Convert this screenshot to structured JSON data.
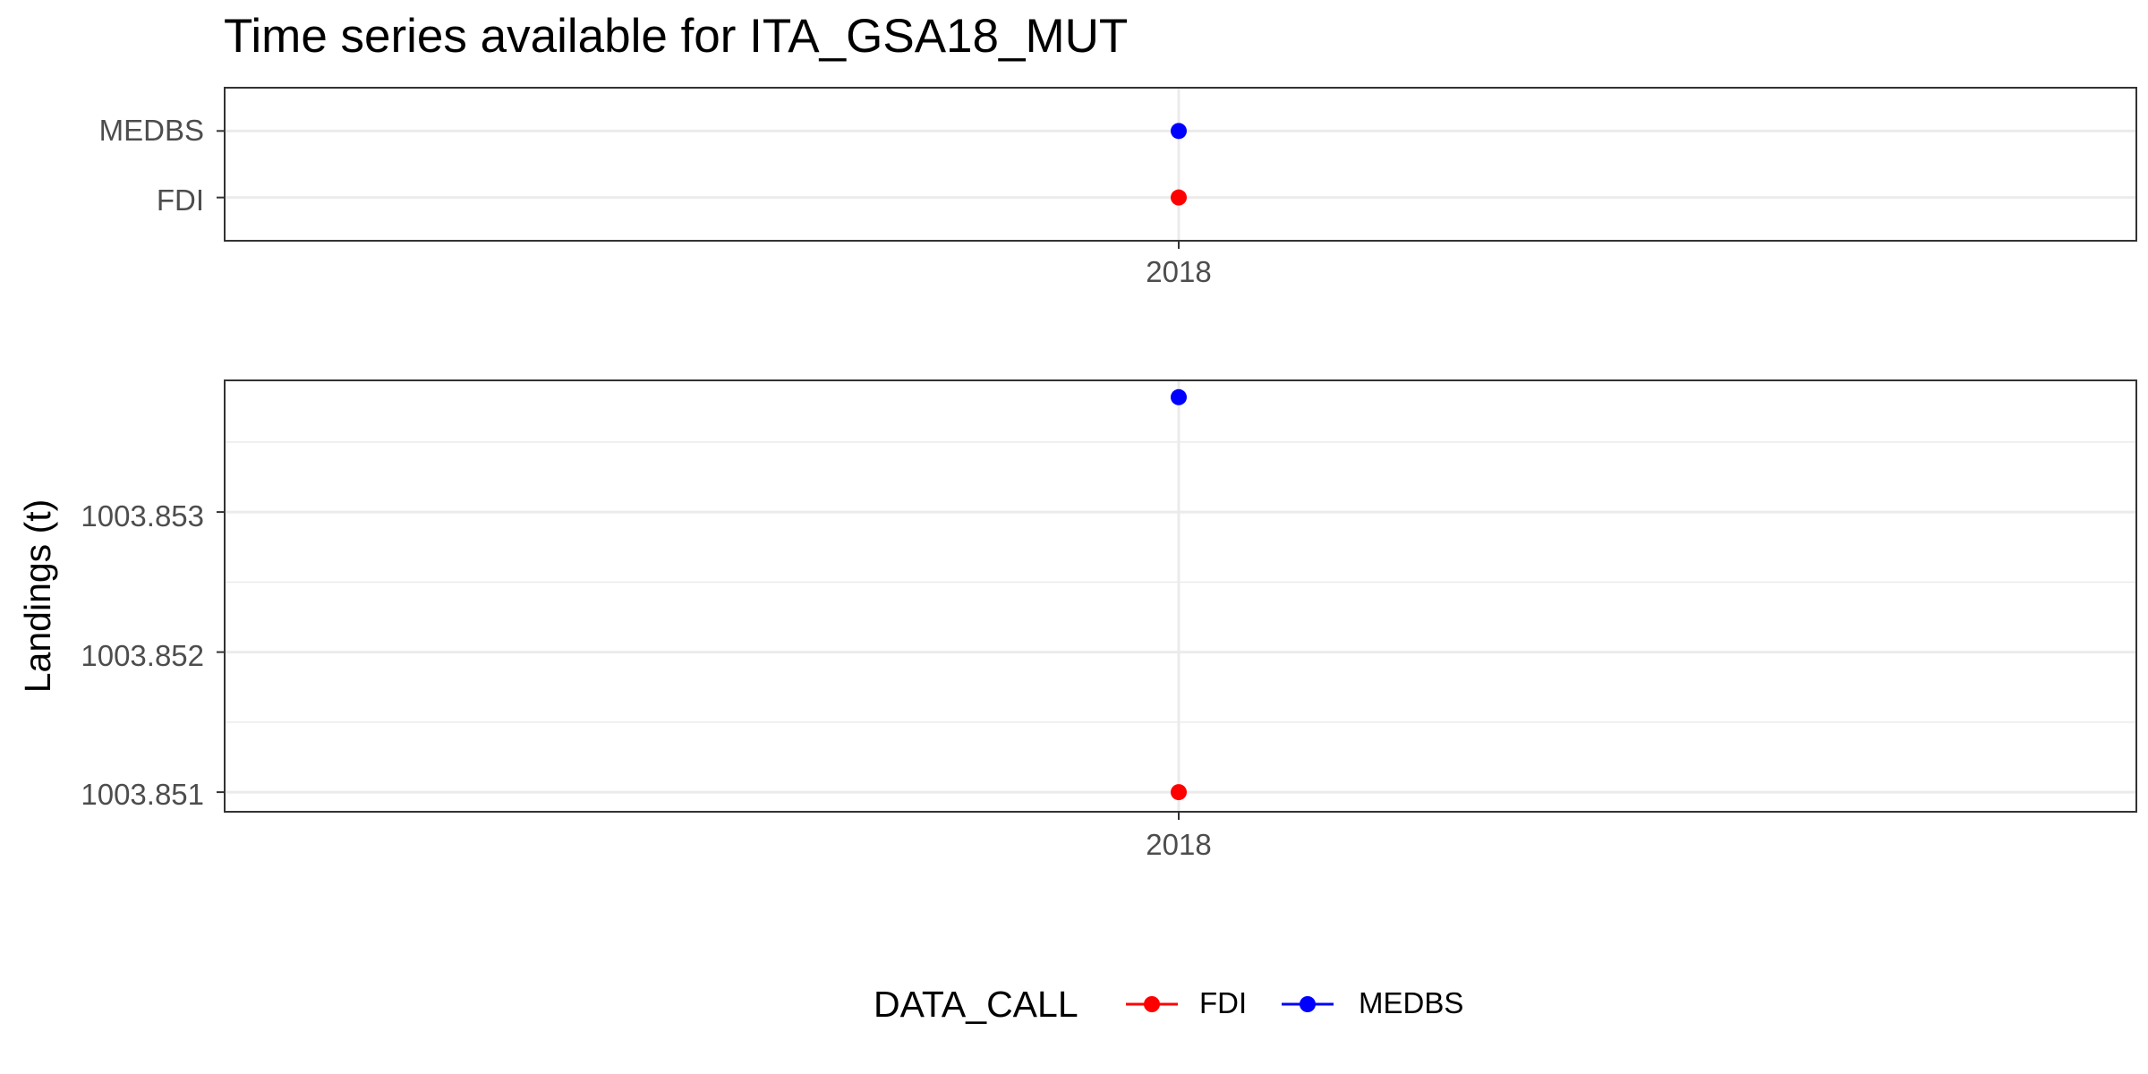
{
  "chart_data": [
    {
      "type": "scatter",
      "title": "Time series available for ITA_GSA18_MUT",
      "xlabel": "",
      "ylabel": "",
      "x_ticks": [
        "2018"
      ],
      "y_categories": [
        "FDI",
        "MEDBS"
      ],
      "grid": true,
      "series": [
        {
          "name": "FDI",
          "color": "#ff0000",
          "points": [
            {
              "x": "2018",
              "y": "FDI"
            }
          ]
        },
        {
          "name": "MEDBS",
          "color": "#0000ff",
          "points": [
            {
              "x": "2018",
              "y": "MEDBS"
            }
          ]
        }
      ]
    },
    {
      "type": "scatter",
      "title": "",
      "xlabel": "",
      "ylabel": "Landings (t)",
      "x_ticks": [
        "2018"
      ],
      "y_ticks": [
        "1003.851",
        "1003.852",
        "1003.853"
      ],
      "ylim": [
        1003.85086,
        1003.85394
      ],
      "grid": true,
      "series": [
        {
          "name": "FDI",
          "color": "#ff0000",
          "points": [
            {
              "x": "2018",
              "y": 1003.851
            }
          ]
        },
        {
          "name": "MEDBS",
          "color": "#0000ff",
          "points": [
            {
              "x": "2018",
              "y": 1003.85382
            }
          ]
        }
      ]
    }
  ],
  "legend": {
    "title": "DATA_CALL",
    "position": "bottom",
    "entries": [
      {
        "label": "FDI",
        "color": "#ff0000"
      },
      {
        "label": "MEDBS",
        "color": "#0000ff"
      }
    ]
  }
}
